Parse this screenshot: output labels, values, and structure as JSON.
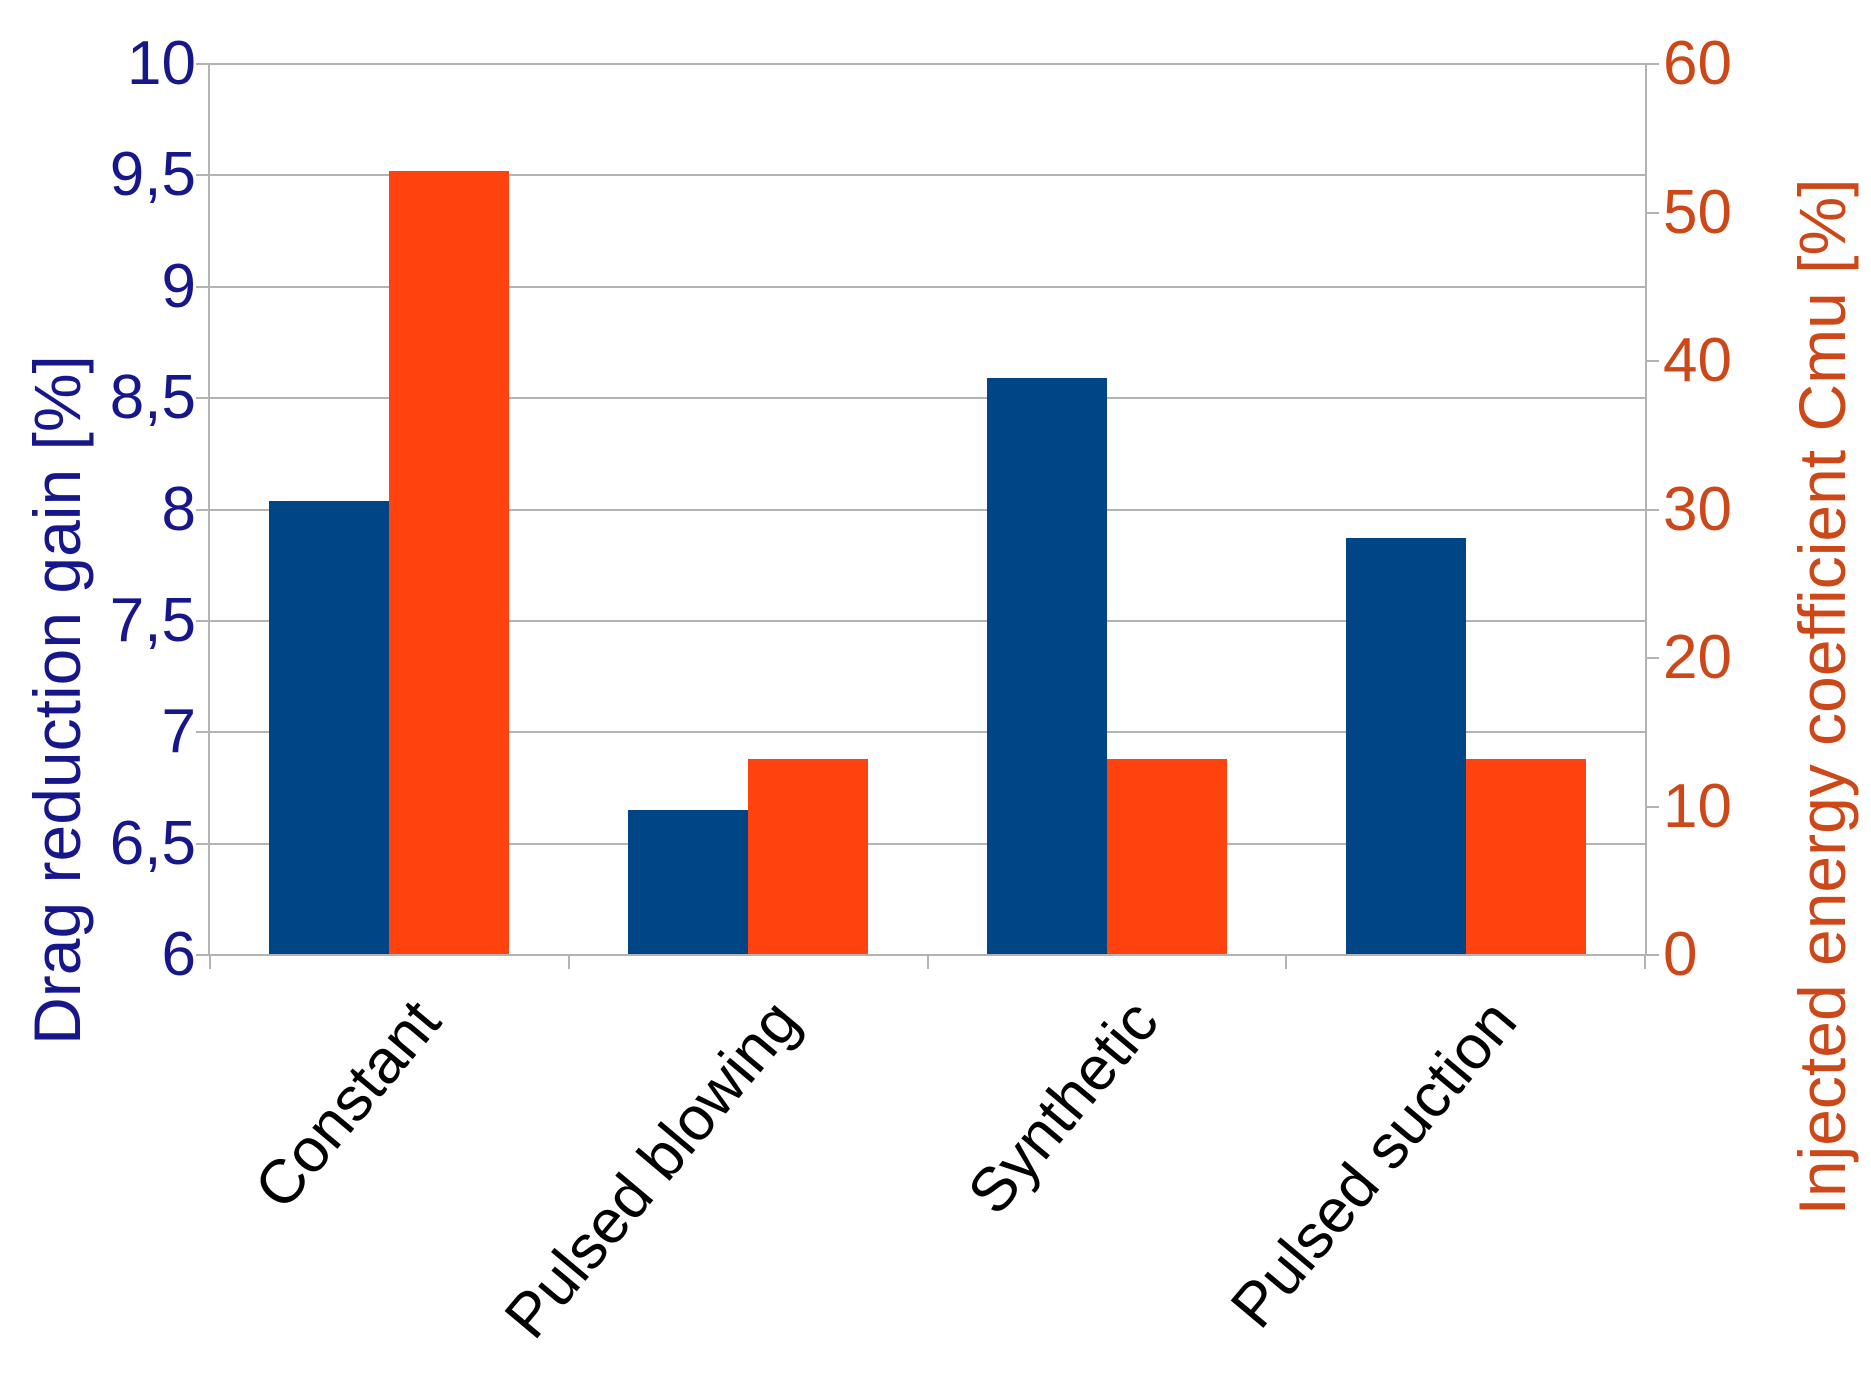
{
  "chart_data": {
    "type": "bar",
    "categories": [
      "Constant",
      "Pulsed blowing",
      "Synthetic",
      "Pulsed suction"
    ],
    "series": [
      {
        "name": "Drag reduction gain",
        "axis": "left",
        "color": "#004586",
        "values": [
          8.04,
          6.65,
          8.59,
          7.87
        ]
      },
      {
        "name": "Injected energy coefficient Cmu",
        "axis": "right",
        "color": "#ff420e",
        "values": [
          52.8,
          13.2,
          13.2,
          13.2
        ]
      }
    ],
    "left_axis": {
      "title": "Drag reduction gain [%]",
      "min": 6,
      "max": 10,
      "tick_values": [
        6,
        6.5,
        7,
        7.5,
        8,
        8.5,
        9,
        9.5,
        10
      ],
      "tick_labels": [
        "6",
        "6,5",
        "7",
        "7,5",
        "8",
        "8,5",
        "9",
        "9,5",
        "10"
      ],
      "color": "#17178c"
    },
    "right_axis": {
      "title": "Injected energy coefficient Cmu [%]",
      "min": 0,
      "max": 60,
      "tick_values": [
        0,
        10,
        20,
        30,
        40,
        50,
        60
      ],
      "tick_labels": [
        "0",
        "10",
        "20",
        "30",
        "40",
        "50",
        "60"
      ],
      "color": "#cc4819"
    },
    "grid": true,
    "legend": "none",
    "colors": {
      "gridline": "#b3b3b3",
      "axisline": "#b3b3b3",
      "category_label": "#000000",
      "background": "#ffffff"
    }
  }
}
